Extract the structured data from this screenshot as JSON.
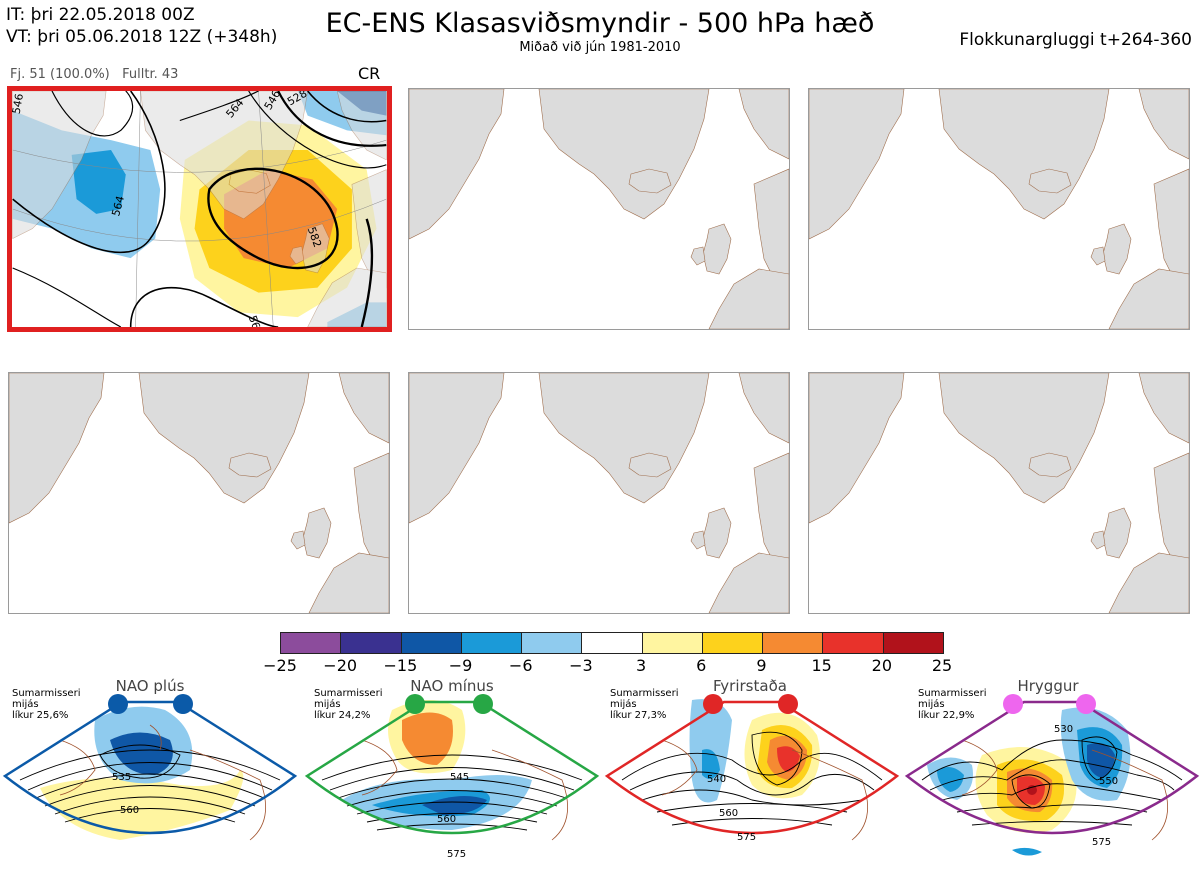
{
  "header": {
    "it_line": "IT: þri 22.05.2018 00Z",
    "vt_line": "VT: þri 05.06.2018 12Z  (+348h)",
    "title": "EC-ENS Klasasviðsmyndir - 500 hPa hæð",
    "subtitle": "Miðað við jún 1981-2010",
    "window": "Flokkunargluggi t+264-360"
  },
  "cluster": {
    "members": "Fj. 51 (100.0%)",
    "representative": "Fulltr. 43",
    "regime_code": "CR"
  },
  "contour_labels": [
    "564",
    "546",
    "528",
    "564",
    "582",
    "564",
    "546",
    "546",
    "54"
  ],
  "colorbar": {
    "ticks": [
      "−25",
      "−20",
      "−15",
      "−9",
      "−6",
      "−3",
      "3",
      "6",
      "9",
      "15",
      "20",
      "25"
    ],
    "colors": [
      "#8c4c9c",
      "#3a3190",
      "#0f57a6",
      "#1b9ad8",
      "#8fcbee",
      "#ffffff",
      "#fff5a0",
      "#fdd21c",
      "#f58a32",
      "#e8322b",
      "#b1121b"
    ]
  },
  "regimes": [
    {
      "name": "NAO plús",
      "note": "Sumarmisseri\nmijás\nlíkur 25,6%",
      "color": "#0b5aa8",
      "labels": [
        "535",
        "560"
      ]
    },
    {
      "name": "NAO mínus",
      "note": "Sumarmisseri\nmijás\nlíkur 24,2%",
      "color": "#27a745",
      "labels": [
        "545",
        "560",
        "575"
      ]
    },
    {
      "name": "Fyrirstaða",
      "note": "Sumarmisseri\nmijás\nlíkur 27,3%",
      "color": "#e02626",
      "labels": [
        "540",
        "560",
        "575"
      ]
    },
    {
      "name": "Hryggur",
      "note": "Sumarmisseri\nmijás\nlíkur 22,9%",
      "color": "#8a2a8c",
      "labels": [
        "530",
        "550",
        "575"
      ]
    }
  ]
}
